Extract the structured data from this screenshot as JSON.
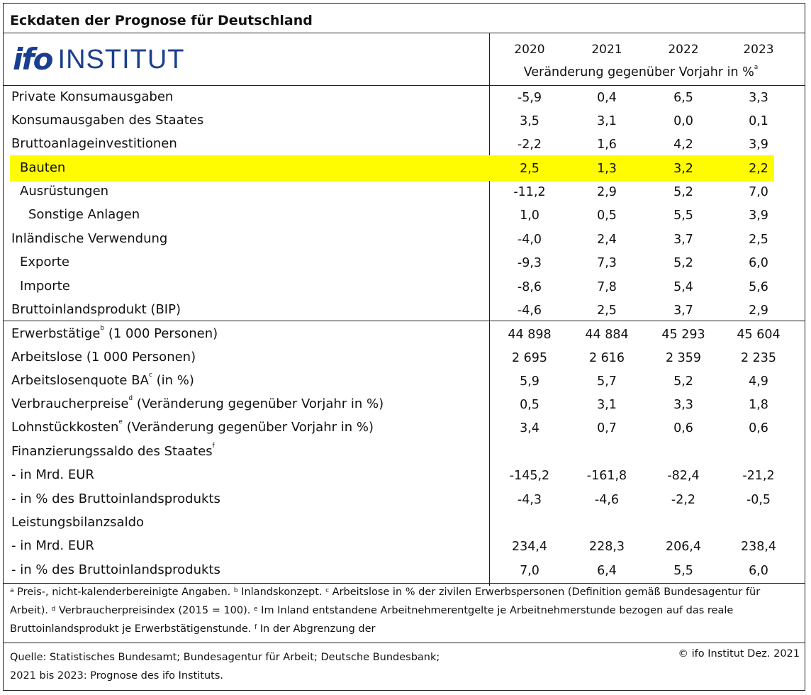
{
  "title": "Eckdaten der Prognose für Deutschland",
  "logo": {
    "ifo": "ifo",
    "institut": "INSTITUT"
  },
  "years": [
    "2020",
    "2021",
    "2022",
    "2023"
  ],
  "subheader": {
    "text": "Veränderung gegenüber Vorjahr in %",
    "sup": "a"
  },
  "rows": [
    {
      "label": "Private Konsumausgaben",
      "values": [
        "-5,9",
        "0,4",
        "6,5",
        "3,3"
      ]
    },
    {
      "label": "Konsumausgaben des Staates",
      "values": [
        "3,5",
        "3,1",
        "0,0",
        "0,1"
      ]
    },
    {
      "label": "Bruttoanlageinvestitionen",
      "values": [
        "-2,2",
        "1,6",
        "4,2",
        "3,9"
      ]
    },
    {
      "label": "Bauten",
      "values": [
        "2,5",
        "1,3",
        "3,2",
        "2,2"
      ],
      "highlight": true
    },
    {
      "label": "Ausrüstungen",
      "values": [
        "-11,2",
        "2,9",
        "5,2",
        "7,0"
      ]
    },
    {
      "label": "Sonstige Anlagen",
      "values": [
        "1,0",
        "0,5",
        "5,5",
        "3,9"
      ]
    },
    {
      "label": "Inländische Verwendung",
      "values": [
        "-4,0",
        "2,4",
        "3,7",
        "2,5"
      ]
    },
    {
      "label": "Exporte",
      "values": [
        "-9,3",
        "7,3",
        "5,2",
        "6,0"
      ]
    },
    {
      "label": "Importe",
      "values": [
        "-8,6",
        "7,8",
        "5,4",
        "5,6"
      ]
    },
    {
      "label": "Bruttoinlandsprodukt (BIP)",
      "values": [
        "-4,6",
        "2,5",
        "3,7",
        "2,9"
      ]
    },
    {
      "label": "Erwerbstätige",
      "sup": "b",
      "rest": " (1 000 Personen)",
      "values": [
        "44 898",
        "44 884",
        "45 293",
        "45 604"
      ]
    },
    {
      "label": "Arbeitslose (1 000 Personen)",
      "values": [
        "2 695",
        "2 616",
        "2 359",
        "2 235"
      ]
    },
    {
      "label": "Arbeitslosenquote BA",
      "sup": "c",
      "rest": " (in %)",
      "values": [
        "5,9",
        "5,7",
        "5,2",
        "4,9"
      ]
    },
    {
      "label": "Verbraucherpreise",
      "sup": "d",
      "rest": " (Veränderung gegenüber Vorjahr in %)",
      "values": [
        "0,5",
        "3,1",
        "3,3",
        "1,8"
      ]
    },
    {
      "label": "Lohnstückkosten",
      "sup": "e",
      "rest": " (Veränderung gegenüber Vorjahr in %)",
      "values": [
        "3,4",
        "0,7",
        "0,6",
        "0,6"
      ]
    },
    {
      "label": "Finanzierungssaldo des Staates",
      "sup": "f",
      "rest": "",
      "values": [
        "",
        "",
        "",
        ""
      ]
    },
    {
      "label": " - in Mrd. EUR",
      "values": [
        "-145,2",
        "-161,8",
        "-82,4",
        "-21,2"
      ]
    },
    {
      "label": " - in % des Bruttoinlandsprodukts",
      "values": [
        "-4,3",
        "-4,6",
        "-2,2",
        "-0,5"
      ]
    },
    {
      "label": "Leistungsbilanzsaldo",
      "values": [
        "",
        "",
        "",
        ""
      ]
    },
    {
      "label": " - in Mrd. EUR",
      "values": [
        "234,4",
        "228,3",
        "206,4",
        "238,4"
      ]
    },
    {
      "label": " - in % des Bruttoinlandsprodukts",
      "values": [
        "7,0",
        "6,4",
        "5,5",
        "6,0"
      ]
    }
  ],
  "footnote": {
    "a_sup": "a",
    "a": " Preis-, nicht-kalenderbereinigte Angaben. ",
    "b_sup": "b",
    "b": " Inlandskonzept. ",
    "c_sup": "c",
    "c": " Arbeitslose in % der zivilen Erwerbspersonen (Definition gemäß Bundesagentur für Arbeit). ",
    "d_sup": "d",
    "d": " Verbraucherpreisindex (2015 = 100). ",
    "e_sup": "e",
    "e": " Im Inland entstandene Arbeitnehmerentgelte je Arbeitnehmerstunde bezogen auf das reale Bruttoinlandsprodukt je Erwerbstätigenstunde. ",
    "f_sup": "f",
    "f": " In der Abgrenzung der"
  },
  "source": {
    "line1": "Quelle: Statistisches Bundesamt; Bundesagentur für Arbeit; Deutsche Bundesbank;",
    "line2": "2021 bis 2023: Prognose des ifo Instituts.",
    "copyright": "© ifo Institut Dez. 2021"
  }
}
